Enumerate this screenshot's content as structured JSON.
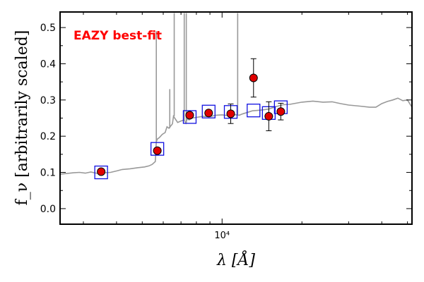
{
  "chart_data": {
    "type": "scatter",
    "title": "",
    "annotation": "EAZY best-fit",
    "xlabel": "λ [Å]",
    "ylabel": "f_ν [arbitrarily scaled]",
    "x_scale": "log",
    "xlim": [
      2450,
      52000
    ],
    "ylim": [
      -0.043,
      0.543
    ],
    "yticks": [
      0.0,
      0.1,
      0.2,
      0.3,
      0.4,
      0.5
    ],
    "ytick_labels": [
      "0.0",
      "0.1",
      "0.2",
      "0.3",
      "0.4",
      "0.5"
    ],
    "xtick_major_labels": [
      "10⁴"
    ],
    "grid": false,
    "colors": {
      "sed": "#999999",
      "model_box": "#1010e0",
      "point_fill": "#e00000",
      "annotation": "#ff0000"
    },
    "sed_template": {
      "name": "",
      "x": [
        2450,
        2600,
        2750,
        2900,
        3050,
        3200,
        3400,
        3600,
        3800,
        4000,
        4200,
        4500,
        4800,
        5100,
        5300,
        5450,
        5600,
        5650,
        5700,
        5800,
        5950,
        6100,
        6200,
        6300,
        6500,
        6560,
        6800,
        7000,
        7200,
        7300,
        7400,
        7500,
        7700,
        8000,
        8500,
        9000,
        9500,
        10000,
        10500,
        11000,
        11600,
        12000,
        12500,
        13000,
        14000,
        15000,
        16000,
        17000,
        18000,
        20000,
        22000,
        24000,
        26000,
        28000,
        30000,
        33000,
        36000,
        38000,
        40000,
        42000,
        44000,
        46000,
        48000,
        50000,
        52000
      ],
      "y": [
        0.095,
        0.097,
        0.099,
        0.1,
        0.098,
        0.101,
        0.097,
        0.099,
        0.1,
        0.104,
        0.108,
        0.11,
        0.113,
        0.115,
        0.118,
        0.122,
        0.13,
        0.185,
        0.192,
        0.196,
        0.205,
        0.21,
        0.226,
        0.222,
        0.234,
        0.255,
        0.238,
        0.242,
        0.245,
        0.236,
        0.249,
        0.245,
        0.25,
        0.252,
        0.255,
        0.254,
        0.258,
        0.259,
        0.257,
        0.26,
        0.258,
        0.262,
        0.266,
        0.27,
        0.272,
        0.275,
        0.282,
        0.287,
        0.288,
        0.294,
        0.297,
        0.294,
        0.295,
        0.29,
        0.286,
        0.283,
        0.28,
        0.28,
        0.29,
        0.296,
        0.3,
        0.305,
        0.298,
        0.3,
        0.28
      ]
    },
    "emission_lines": [
      {
        "x": 5650,
        "y": 0.49
      },
      {
        "x": 6350,
        "y": 0.33
      },
      {
        "x": 6600,
        "y": 0.54
      },
      {
        "x": 7200,
        "y": 0.54
      },
      {
        "x": 7330,
        "y": 0.54
      },
      {
        "x": 11450,
        "y": 0.54
      }
    ],
    "model_fluxes": {
      "name": "",
      "x": [
        3500,
        5700,
        7550,
        8900,
        10780,
        13140,
        15000,
        16650
      ],
      "y": [
        0.1,
        0.165,
        0.253,
        0.268,
        0.267,
        0.271,
        0.264,
        0.28
      ]
    },
    "observed": {
      "name": "",
      "x": [
        3500,
        5700,
        7550,
        8900,
        10780,
        13140,
        15000,
        16650
      ],
      "y": [
        0.102,
        0.16,
        0.258,
        0.264,
        0.262,
        0.361,
        0.255,
        0.268
      ],
      "yerr": [
        0.004,
        0.005,
        0.007,
        0.008,
        0.027,
        0.053,
        0.04,
        0.023
      ]
    }
  }
}
